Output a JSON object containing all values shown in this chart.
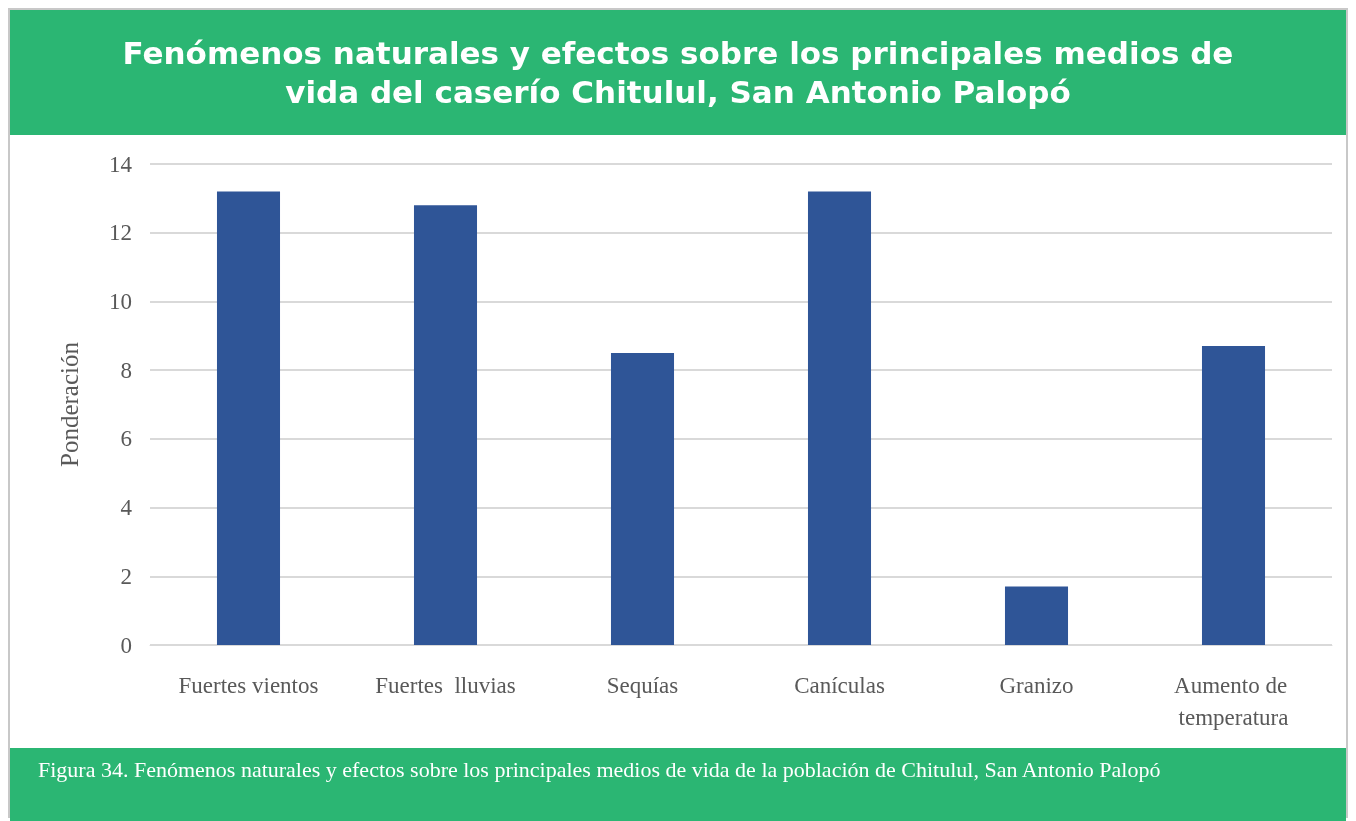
{
  "chart_data": {
    "type": "bar",
    "title": "Fenómenos naturales y efectos sobre los principales medios de vida del caserío Chitulul, San Antonio Palopó",
    "ylabel": "Ponderación",
    "categories": [
      "Fuertes vientos",
      "Fuertes  lluvias",
      "Sequías",
      "Canículas",
      "Granizo",
      "Aumento de temperatura"
    ],
    "values": [
      13.2,
      12.8,
      8.5,
      13.2,
      1.7,
      8.7
    ],
    "color": "#2f5597",
    "ylim": [
      0,
      14
    ],
    "yticks": [
      0,
      2,
      4,
      6,
      8,
      10,
      12,
      14
    ],
    "grid": "y",
    "annotations": [
      "Figura 34. Fenómenos naturales y efectos sobre los principales medios de vida de la población de Chitulul, San Antonio Palopó"
    ]
  }
}
